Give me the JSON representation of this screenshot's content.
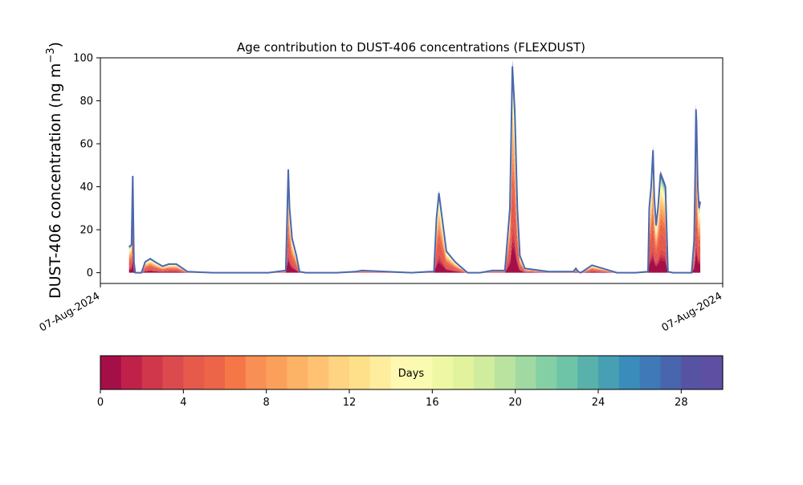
{
  "chart_data": {
    "type": "area",
    "stacked": true,
    "title": "Age contribution to DUST-406 concentrations (FLEXDUST)",
    "ylabel_main": "DUST-406 concentration (ng m",
    "ylabel_sup": "−3",
    "ylabel_close": ")",
    "xlabel": "",
    "ylim": [
      -5,
      100
    ],
    "yticks": [
      "0",
      "20",
      "40",
      "60",
      "80",
      "100"
    ],
    "xlim": [
      0,
      1
    ],
    "xticks": [
      {
        "label": "07-Aug-2024",
        "value": 0
      },
      {
        "label": "07-Aug-2024",
        "value": 1
      }
    ],
    "grid": false,
    "x": [
      0.046,
      0.05,
      0.052,
      0.054,
      0.056,
      0.06,
      0.066,
      0.072,
      0.08,
      0.088,
      0.1,
      0.11,
      0.122,
      0.14,
      0.18,
      0.23,
      0.27,
      0.298,
      0.302,
      0.304,
      0.308,
      0.315,
      0.32,
      0.33,
      0.38,
      0.41,
      0.42,
      0.5,
      0.53,
      0.532,
      0.536,
      0.54,
      0.544,
      0.548,
      0.556,
      0.57,
      0.59,
      0.61,
      0.63,
      0.65,
      0.658,
      0.662,
      0.666,
      0.67,
      0.674,
      0.682,
      0.72,
      0.75,
      0.76,
      0.764,
      0.768,
      0.772,
      0.79,
      0.83,
      0.852,
      0.86,
      0.88,
      0.882,
      0.885,
      0.888,
      0.89,
      0.893,
      0.896,
      0.9,
      0.904,
      0.908,
      0.912,
      0.92,
      0.94,
      0.95,
      0.954,
      0.956,
      0.957,
      0.958,
      0.96,
      0.962,
      0.964
    ],
    "total": [
      12,
      13,
      45,
      5,
      0,
      0,
      0,
      5,
      6.5,
      5,
      3,
      4,
      4,
      0.5,
      0,
      0,
      0,
      1,
      48,
      30,
      16,
      8,
      0.5,
      0,
      0,
      0.5,
      1,
      0,
      0.5,
      0.5,
      0.5,
      25,
      37,
      28,
      10,
      5,
      0,
      0,
      1,
      1,
      30,
      96,
      75,
      30,
      8,
      2,
      0.5,
      0.5,
      0.5,
      2,
      0.5,
      0,
      3.5,
      0,
      0,
      0,
      0.5,
      30,
      40,
      57,
      35,
      22,
      30,
      46,
      43,
      40,
      0.5,
      0,
      0,
      0,
      15,
      50,
      76,
      70,
      40,
      30,
      33
    ],
    "bands": [
      {
        "days": [
          0,
          1
        ],
        "fraction": 0.13
      },
      {
        "days": [
          1,
          2
        ],
        "fraction": 0.03
      },
      {
        "days": [
          2,
          3
        ],
        "fraction": 0.03
      },
      {
        "days": [
          3,
          4
        ],
        "fraction": 0.05
      },
      {
        "days": [
          4,
          5
        ],
        "fraction": 0.16
      },
      {
        "days": [
          5,
          6
        ],
        "fraction": 0.1
      },
      {
        "days": [
          6,
          7
        ],
        "fraction": 0.06
      },
      {
        "days": [
          7,
          8
        ],
        "fraction": 0.05
      },
      {
        "days": [
          8,
          9
        ],
        "fraction": 0.05
      },
      {
        "days": [
          9,
          10
        ],
        "fraction": 0.04
      },
      {
        "days": [
          10,
          11
        ],
        "fraction": 0.04
      },
      {
        "days": [
          11,
          12
        ],
        "fraction": 0.03
      },
      {
        "days": [
          12,
          13
        ],
        "fraction": 0.03
      },
      {
        "days": [
          13,
          14
        ],
        "fraction": 0.03
      },
      {
        "days": [
          14,
          15
        ],
        "fraction": 0.02
      },
      {
        "days": [
          15,
          16
        ],
        "fraction": 0.02
      },
      {
        "days": [
          16,
          17
        ],
        "fraction": 0.02
      },
      {
        "days": [
          17,
          18
        ],
        "fraction": 0.015
      },
      {
        "days": [
          18,
          19
        ],
        "fraction": 0.015
      },
      {
        "days": [
          19,
          20
        ],
        "fraction": 0.01
      },
      {
        "days": [
          20,
          21
        ],
        "fraction": 0.01
      },
      {
        "days": [
          21,
          22
        ],
        "fraction": 0.01
      },
      {
        "days": [
          22,
          23
        ],
        "fraction": 0.01
      },
      {
        "days": [
          23,
          24
        ],
        "fraction": 0.01
      },
      {
        "days": [
          24,
          25
        ],
        "fraction": 0.008
      },
      {
        "days": [
          25,
          26
        ],
        "fraction": 0.006
      },
      {
        "days": [
          26,
          27
        ],
        "fraction": 0.006
      },
      {
        "days": [
          27,
          28
        ],
        "fraction": 0.006
      },
      {
        "days": [
          28,
          29
        ],
        "fraction": 0.006
      },
      {
        "days": [
          29,
          30
        ],
        "fraction": 0.03
      }
    ],
    "colorbar": {
      "label": "Days",
      "range": [
        0,
        30
      ],
      "ticks": [
        "0",
        "4",
        "8",
        "12",
        "16",
        "20",
        "24",
        "28"
      ],
      "colors": [
        "#a50f47",
        "#bf2149",
        "#d0374a",
        "#db4a4c",
        "#e55a4b",
        "#ec6548",
        "#f57748",
        "#f88f54",
        "#fba05b",
        "#fdb365",
        "#fec272",
        "#fed382",
        "#fee08b",
        "#ffed9e",
        "#fff8b1",
        "#f9fbb0",
        "#eef7a3",
        "#e1f39d",
        "#d0ec9d",
        "#bae3a0",
        "#a0d9a2",
        "#84cfa4",
        "#6ec4a6",
        "#58b2ab",
        "#479fb4",
        "#3a8cbb",
        "#3f79b7",
        "#4965ad",
        "#5653a3",
        "#5e4fa2"
      ]
    },
    "outline_color": "#4c68ad"
  }
}
